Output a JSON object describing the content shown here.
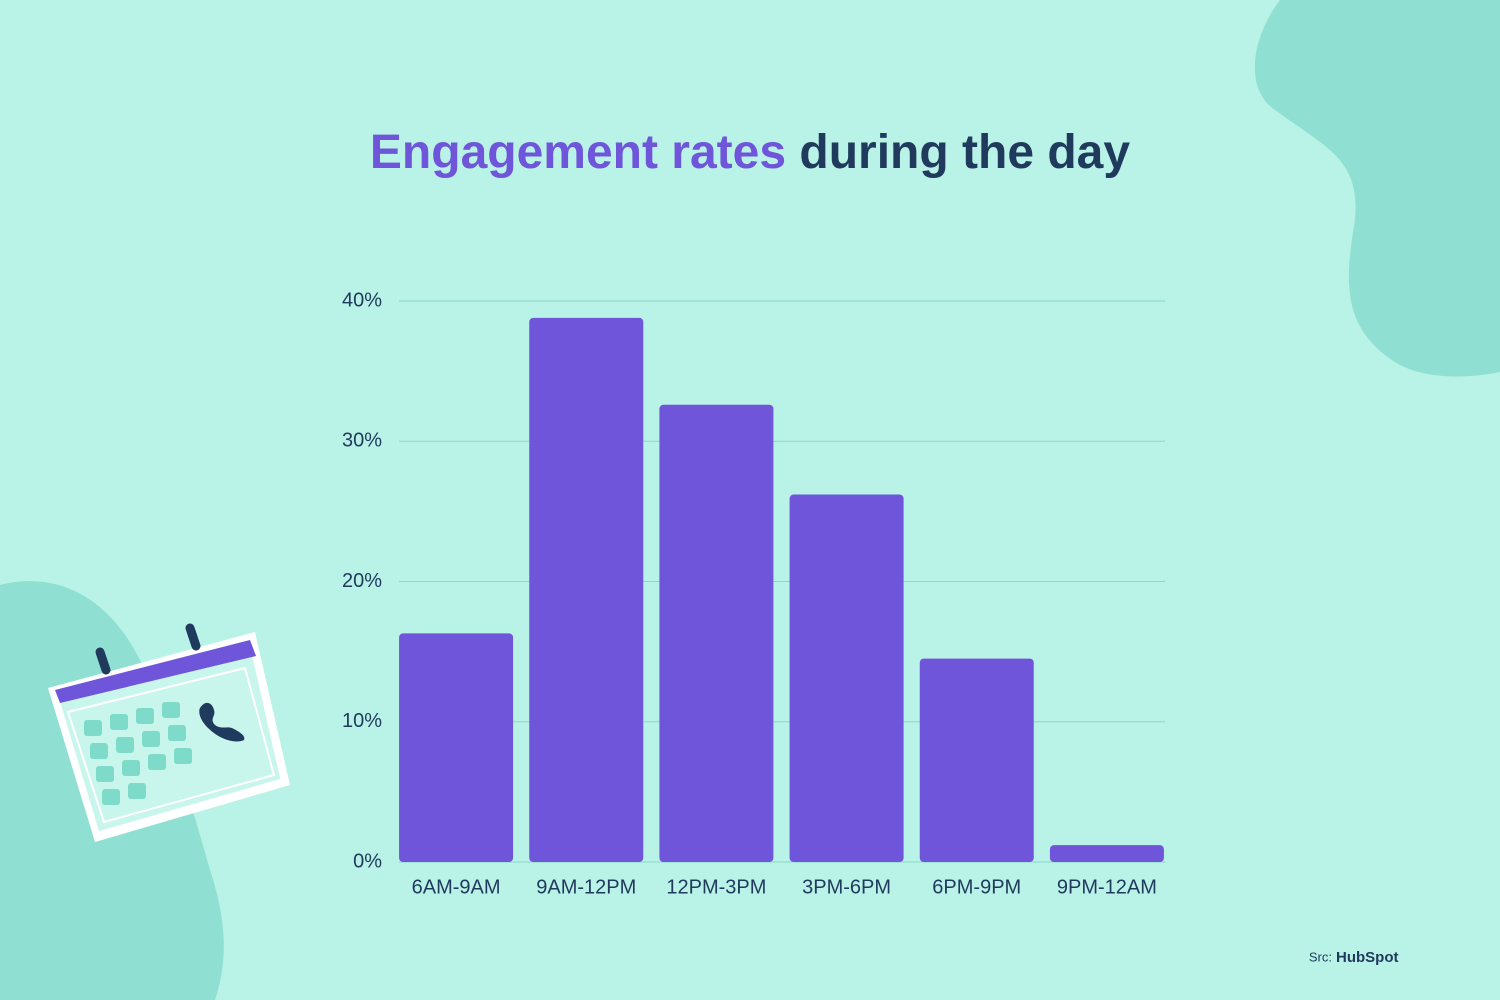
{
  "chart_data": {
    "type": "bar",
    "title": [
      "Engagement rates",
      "during the day"
    ],
    "title_colors": [
      "#6f55d9",
      "#1f3a5c"
    ],
    "categories": [
      "6AM-9AM",
      "9AM-12PM",
      "12PM-3PM",
      "3PM-6PM",
      "6PM-9PM",
      "9PM-12AM"
    ],
    "values": [
      16.3,
      38.8,
      32.6,
      26.2,
      14.5,
      1.2
    ],
    "color": "#6f55d9",
    "ylim": [
      0,
      40
    ],
    "yticks": [
      {
        "value": 0,
        "label": "0%"
      },
      {
        "value": 10,
        "label": "10%"
      },
      {
        "value": 20,
        "label": "20%"
      },
      {
        "value": 30,
        "label": "30%"
      },
      {
        "value": 40,
        "label": "40%"
      }
    ],
    "grid": true,
    "source_label": "Src:",
    "source": "HubSpot"
  }
}
